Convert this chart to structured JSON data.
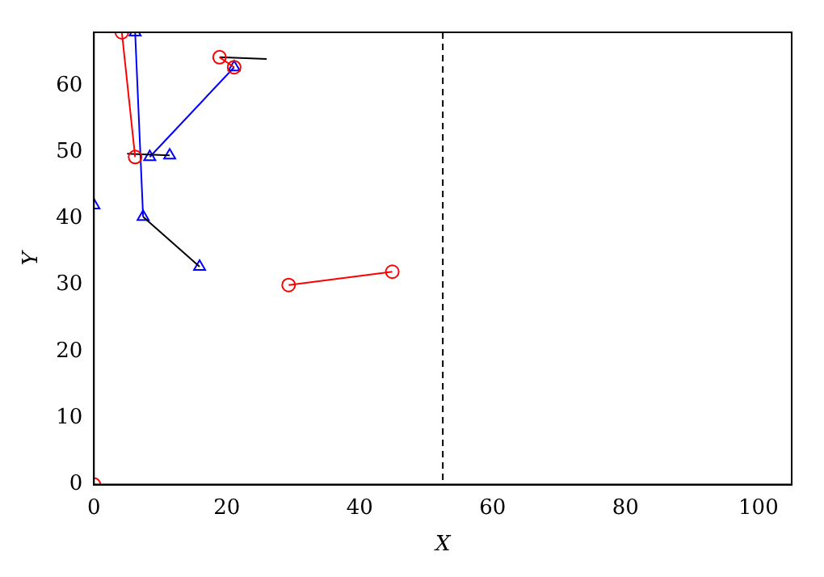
{
  "chart_data": {
    "type": "line",
    "xlabel": "X",
    "ylabel": "Y",
    "xlim": [
      0,
      105
    ],
    "ylim": [
      0,
      68
    ],
    "xticks": [
      0,
      20,
      40,
      60,
      80,
      100
    ],
    "yticks": [
      0,
      10,
      20,
      30,
      40,
      50,
      60
    ],
    "grid": false,
    "legend": false,
    "series": [
      {
        "color": "#ff0000",
        "marker": "circle",
        "x": [
          4.2,
          6.2
        ],
        "values": [
          68,
          49.25
        ]
      },
      {
        "color": "#ff0000",
        "marker": "circle",
        "x": [
          18.9,
          21.1
        ],
        "values": [
          64.25,
          62.75
        ]
      },
      {
        "color": "#ff0000",
        "marker": "circle",
        "x": [
          29.3,
          44.9
        ],
        "values": [
          30,
          32
        ]
      },
      {
        "color": "#ff0000",
        "marker": "circle",
        "x": [
          0
        ],
        "values": [
          0
        ]
      },
      {
        "color": "#000000",
        "marker": "none",
        "x": [
          7.4,
          15.9
        ],
        "values": [
          40.25,
          32.75
        ]
      },
      {
        "color": "#000000",
        "marker": "none",
        "x": [
          5,
          11.4
        ],
        "values": [
          49.75,
          49.5
        ]
      },
      {
        "color": "#000000",
        "marker": "none",
        "x": [
          18.9,
          26
        ],
        "values": [
          64.25,
          64
        ]
      },
      {
        "color": "#0000ff",
        "marker": "triangle",
        "x": [
          6.2,
          7.4
        ],
        "values": [
          68,
          40.25
        ]
      },
      {
        "color": "#0000ff",
        "marker": "triangle",
        "x": [
          8.4,
          21.1
        ],
        "values": [
          49.25,
          62.75
        ]
      },
      {
        "color": "#0000ff",
        "marker": "triangle",
        "x": [
          11.4
        ],
        "values": [
          49.5
        ]
      },
      {
        "color": "#0000ff",
        "marker": "triangle",
        "x": [
          0
        ],
        "values": [
          42
        ]
      },
      {
        "color": "#0000ff",
        "marker": "triangle",
        "x": [
          15.9
        ],
        "values": [
          32.75
        ]
      }
    ],
    "ref_lines": [
      {
        "axis": "x",
        "value": 52.5,
        "color": "#000000",
        "line_style": "dashed"
      }
    ]
  }
}
